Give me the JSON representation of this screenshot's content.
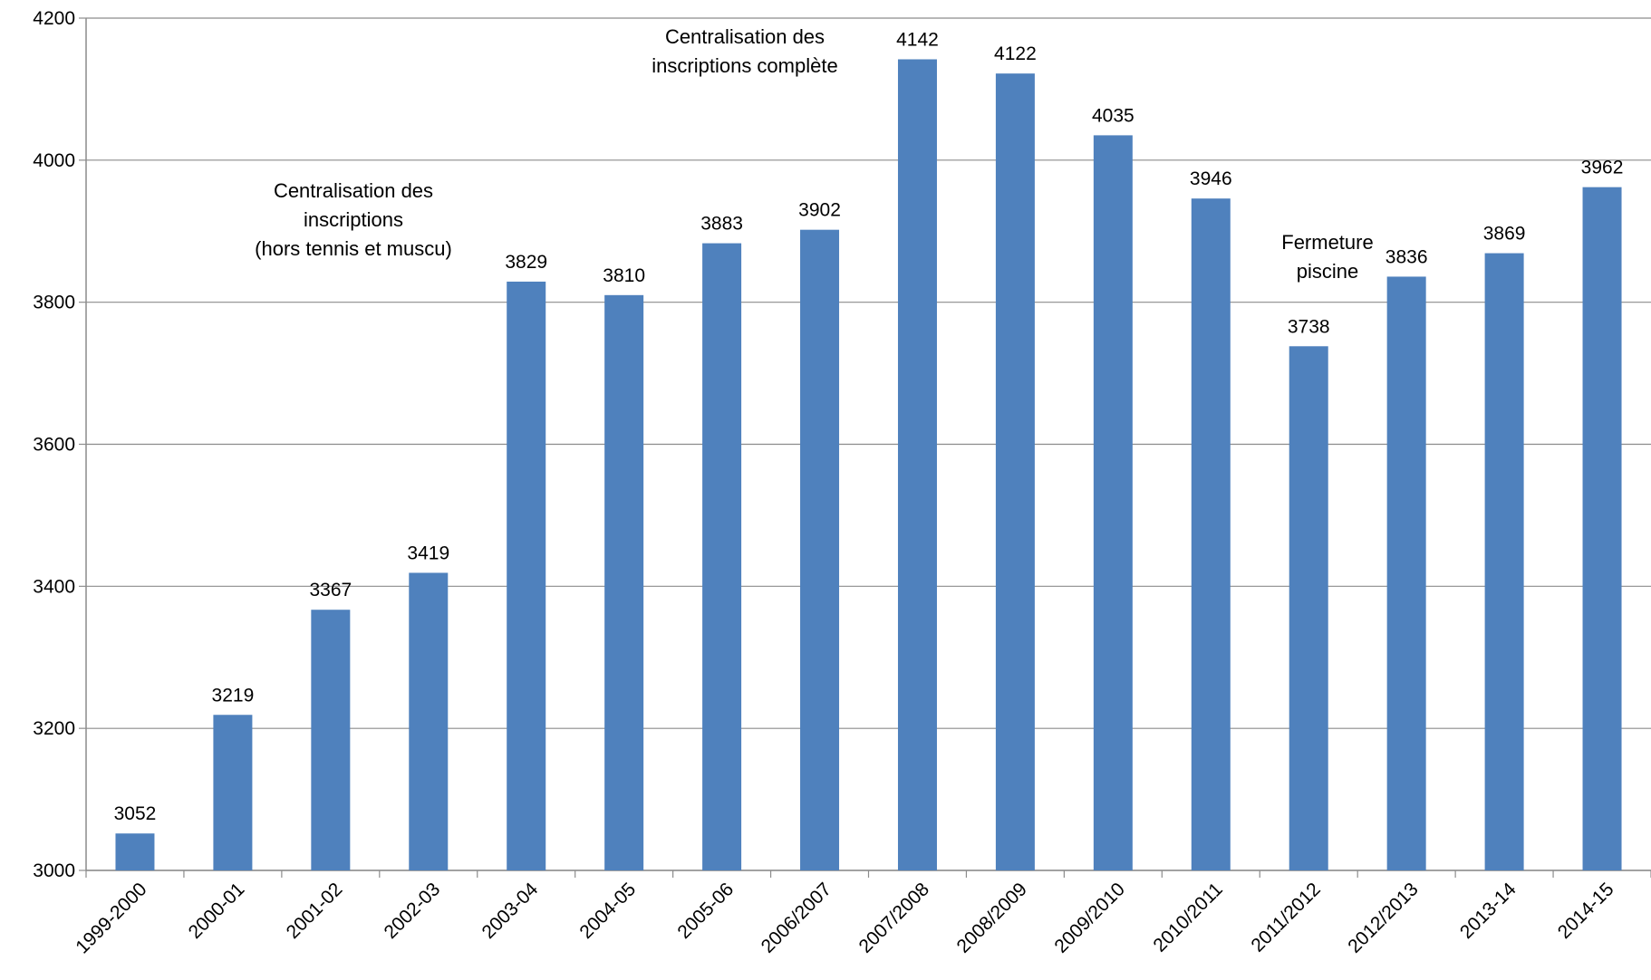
{
  "chart_data": {
    "type": "bar",
    "title": "",
    "xlabel": "",
    "ylabel": "",
    "categories": [
      "1999-2000",
      "2000-01",
      "2001-02",
      "2002-03",
      "2003-04",
      "2004-05",
      "2005-06",
      "2006/2007",
      "2007/2008",
      "2008/2009",
      "2009/2010",
      "2010/2011",
      "2011/2012",
      "2012/2013",
      "2013-14",
      "2014-15"
    ],
    "values": [
      3052,
      3219,
      3367,
      3419,
      3829,
      3810,
      3883,
      3902,
      4142,
      4122,
      4035,
      3946,
      3738,
      3836,
      3869,
      3962
    ],
    "data_labels": [
      "3052",
      "3219",
      "3367",
      "3419",
      "3829",
      "3810",
      "3883",
      "3902",
      "4142",
      "4122",
      "4035",
      "3946",
      "3738",
      "3836",
      "3869",
      "3962"
    ],
    "ylim": [
      3000,
      4200
    ],
    "yticks": [
      "3000",
      "3200",
      "3400",
      "3600",
      "3800",
      "4000",
      "4200"
    ],
    "grid": true,
    "bar_color": "#4F81BD",
    "annotations": [
      {
        "near_category": "2001-02",
        "lines": [
          "Centralisation des",
          "inscriptions",
          "(hors tennis et muscu)"
        ]
      },
      {
        "near_category": "2006/2007",
        "lines": [
          "Centralisation des",
          "inscriptions  complète"
        ]
      },
      {
        "near_category": "2011/2012",
        "lines": [
          "Fermeture",
          "piscine"
        ]
      }
    ]
  }
}
